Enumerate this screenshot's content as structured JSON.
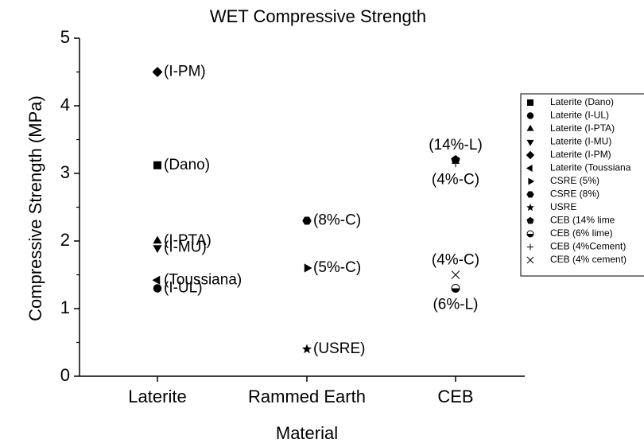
{
  "chart_data": {
    "type": "scatter",
    "title": "WET Compressive Strength",
    "x_label": "Material",
    "y_label": "Compressive Strength (MPa)",
    "categories": [
      "Laterite",
      "Rammed Earth",
      "CEB"
    ],
    "ylim": [
      0,
      5
    ],
    "yticks": [
      0,
      1,
      2,
      3,
      4,
      5
    ],
    "color": "#000000",
    "series": [
      {
        "name": "Laterite (Dano)",
        "marker": "square",
        "x": "Laterite",
        "y": 3.12,
        "label": "(Dano)"
      },
      {
        "name": "Laterite (I-UL)",
        "marker": "circle",
        "x": "Laterite",
        "y": 1.3,
        "label": "(I-UL)"
      },
      {
        "name": "Laterite (I-PTA)",
        "marker": "triangle-up",
        "x": "Laterite",
        "y": 2.0,
        "label": "(I-PTA)"
      },
      {
        "name": "Laterite (I-MU)",
        "marker": "triangle-down",
        "x": "Laterite",
        "y": 1.9,
        "label": "(I-MU)"
      },
      {
        "name": "Laterite (I-PM)",
        "marker": "diamond",
        "x": "Laterite",
        "y": 4.5,
        "label": "(I-PM)"
      },
      {
        "name": "Laterite (Toussiana",
        "marker": "triangle-left",
        "x": "Laterite",
        "y": 1.42,
        "label": "(Toussiana)"
      },
      {
        "name": "CSRE (5%)",
        "marker": "triangle-right",
        "x": "Rammed Earth",
        "y": 1.6,
        "label": "(5%-C)"
      },
      {
        "name": "CSRE (8%)",
        "marker": "hexagon",
        "x": "Rammed Earth",
        "y": 2.3,
        "label": "(8%-C)"
      },
      {
        "name": "USRE",
        "marker": "star",
        "x": "Rammed Earth",
        "y": 0.4,
        "label": "(USRE)"
      },
      {
        "name": "CEB (14% lime",
        "marker": "pentagon",
        "x": "CEB",
        "y": 3.2,
        "label": "(14%-L)"
      },
      {
        "name": "CEB (6% lime)",
        "marker": "half-circle",
        "x": "CEB",
        "y": 1.3,
        "label": "(6%-L)"
      },
      {
        "name": "CEB (4%Cement)",
        "marker": "plus",
        "x": "CEB",
        "y": 3.15,
        "label": "(4%-C)"
      },
      {
        "name": "CEB (4% cement)",
        "marker": "cross",
        "x": "CEB",
        "y": 1.5,
        "label": "(4%-C)"
      }
    ]
  }
}
